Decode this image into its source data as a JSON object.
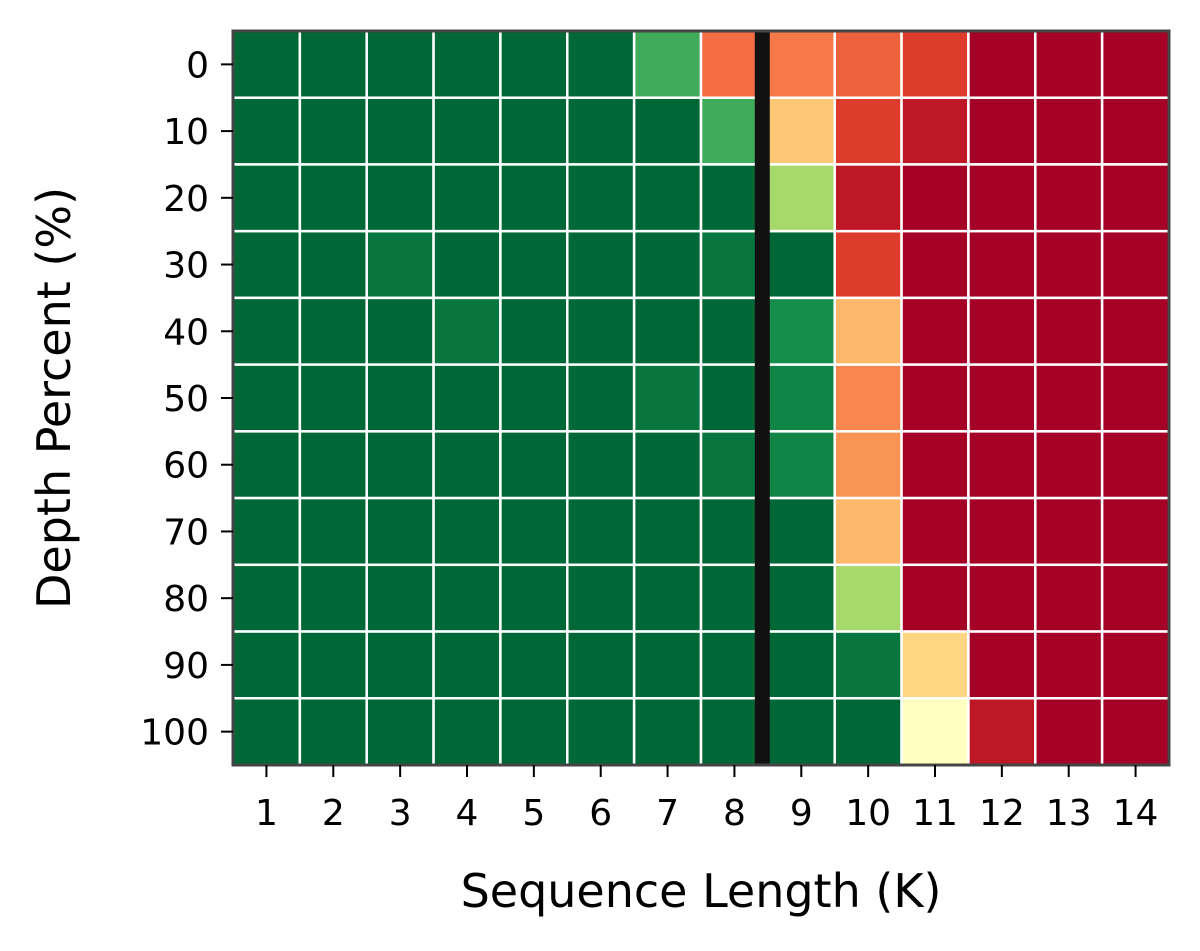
{
  "chart_data": {
    "type": "heatmap",
    "title": "",
    "xlabel": "Sequence Length (K)",
    "ylabel": "Depth Percent (%)",
    "x_categories": [
      "1",
      "2",
      "3",
      "4",
      "5",
      "6",
      "7",
      "8",
      "9",
      "10",
      "11",
      "12",
      "13",
      "14"
    ],
    "y_categories": [
      "0",
      "10",
      "20",
      "30",
      "40",
      "50",
      "60",
      "70",
      "80",
      "90",
      "100"
    ],
    "colormap": "RdYlGn",
    "value_range": [
      0,
      1
    ],
    "values": [
      [
        1.0,
        1.0,
        1.0,
        1.0,
        1.0,
        1.0,
        0.85,
        0.2,
        0.22,
        0.18,
        0.12,
        0.0,
        0.0,
        0.0
      ],
      [
        1.0,
        1.0,
        1.0,
        1.0,
        1.0,
        1.0,
        1.0,
        0.85,
        0.35,
        0.12,
        0.05,
        0.0,
        0.0,
        0.0
      ],
      [
        1.0,
        1.0,
        1.0,
        1.0,
        1.0,
        1.0,
        1.0,
        1.0,
        0.7,
        0.05,
        0.0,
        0.0,
        0.0,
        0.0
      ],
      [
        1.0,
        1.0,
        0.97,
        1.0,
        1.0,
        1.0,
        1.0,
        0.97,
        1.0,
        0.12,
        0.0,
        0.0,
        0.0,
        0.0
      ],
      [
        1.0,
        1.0,
        1.0,
        0.97,
        1.0,
        1.0,
        1.0,
        1.0,
        0.92,
        0.32,
        0.0,
        0.0,
        0.0,
        0.0
      ],
      [
        1.0,
        1.0,
        1.0,
        1.0,
        1.0,
        1.0,
        0.97,
        1.0,
        0.94,
        0.24,
        0.0,
        0.0,
        0.0,
        0.0
      ],
      [
        1.0,
        1.0,
        1.0,
        1.0,
        1.0,
        1.0,
        1.0,
        0.97,
        0.94,
        0.26,
        0.0,
        0.0,
        0.0,
        0.0
      ],
      [
        1.0,
        1.0,
        1.0,
        1.0,
        1.0,
        1.0,
        1.0,
        1.0,
        1.0,
        0.32,
        0.0,
        0.0,
        0.0,
        0.0
      ],
      [
        1.0,
        1.0,
        1.0,
        1.0,
        1.0,
        1.0,
        1.0,
        1.0,
        1.0,
        0.7,
        0.0,
        0.0,
        0.0,
        0.0
      ],
      [
        1.0,
        1.0,
        1.0,
        1.0,
        1.0,
        1.0,
        1.0,
        1.0,
        1.0,
        0.97,
        0.38,
        0.0,
        0.0,
        0.0
      ],
      [
        1.0,
        1.0,
        1.0,
        1.0,
        1.0,
        1.0,
        1.0,
        1.0,
        1.0,
        1.0,
        0.5,
        0.05,
        0.0,
        0.0
      ]
    ],
    "reference_line": {
      "orientation": "vertical",
      "between_x": [
        "8",
        "9"
      ]
    }
  }
}
